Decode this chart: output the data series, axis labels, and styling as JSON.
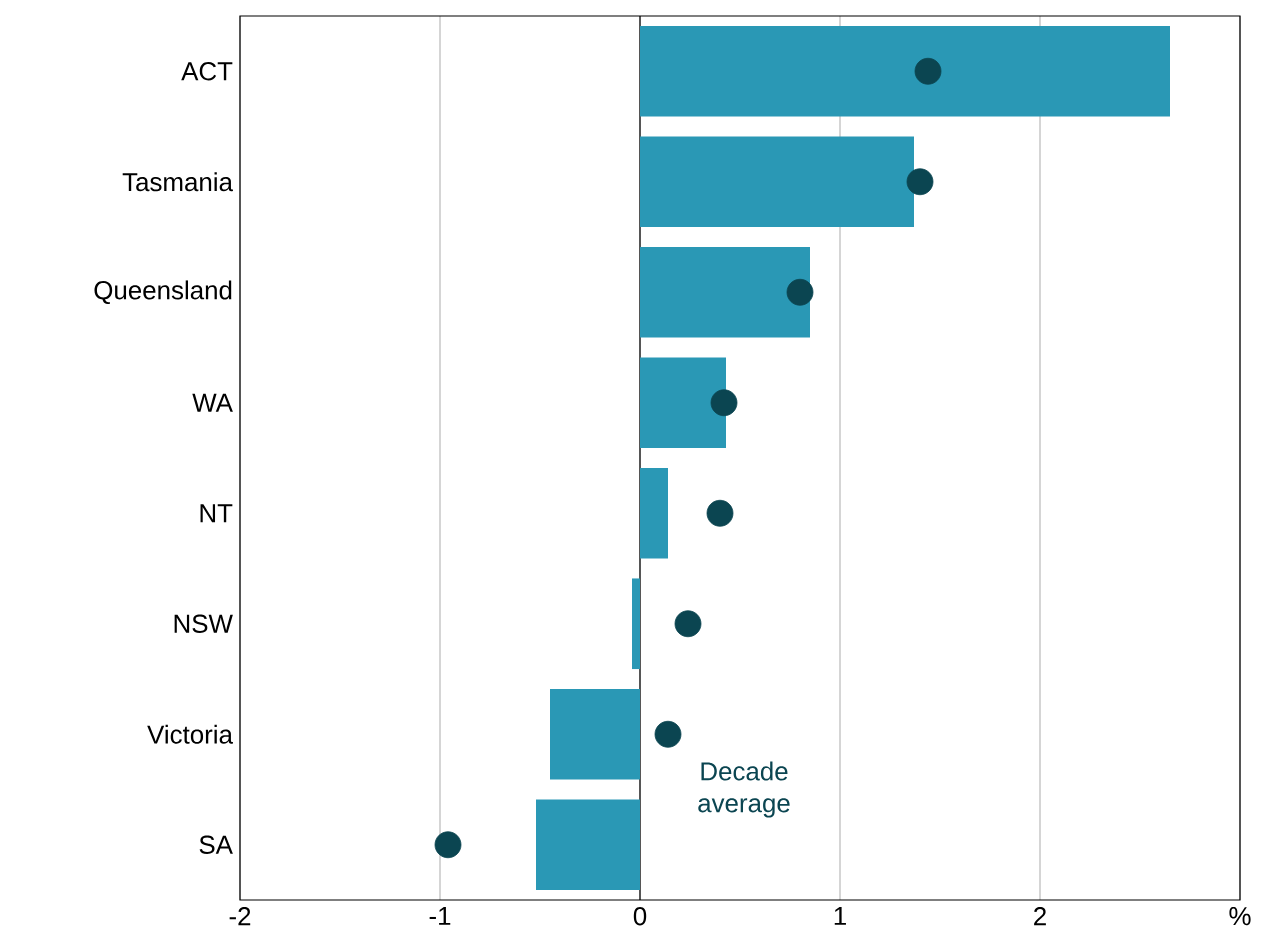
{
  "chart_data": {
    "type": "bar",
    "orientation": "horizontal",
    "categories": [
      "ACT",
      "Tasmania",
      "Queensland",
      "WA",
      "NT",
      "NSW",
      "Victoria",
      "SA"
    ],
    "series": [
      {
        "color": "#2a98b5",
        "values": [
          2.65,
          1.37,
          0.85,
          0.43,
          0.14,
          -0.04,
          -0.45,
          -0.52
        ]
      },
      {
        "type": "scatter",
        "name": "Decade average",
        "color": "#0b4551",
        "marker": "circle",
        "values": [
          1.44,
          1.4,
          0.8,
          0.42,
          0.4,
          0.24,
          0.14,
          -0.96
        ]
      }
    ],
    "xlim": [
      -2,
      3
    ],
    "xticks": [
      -2,
      -1,
      0,
      1,
      2,
      {
        "value": 3,
        "label": "%"
      }
    ],
    "grid": "x"
  }
}
